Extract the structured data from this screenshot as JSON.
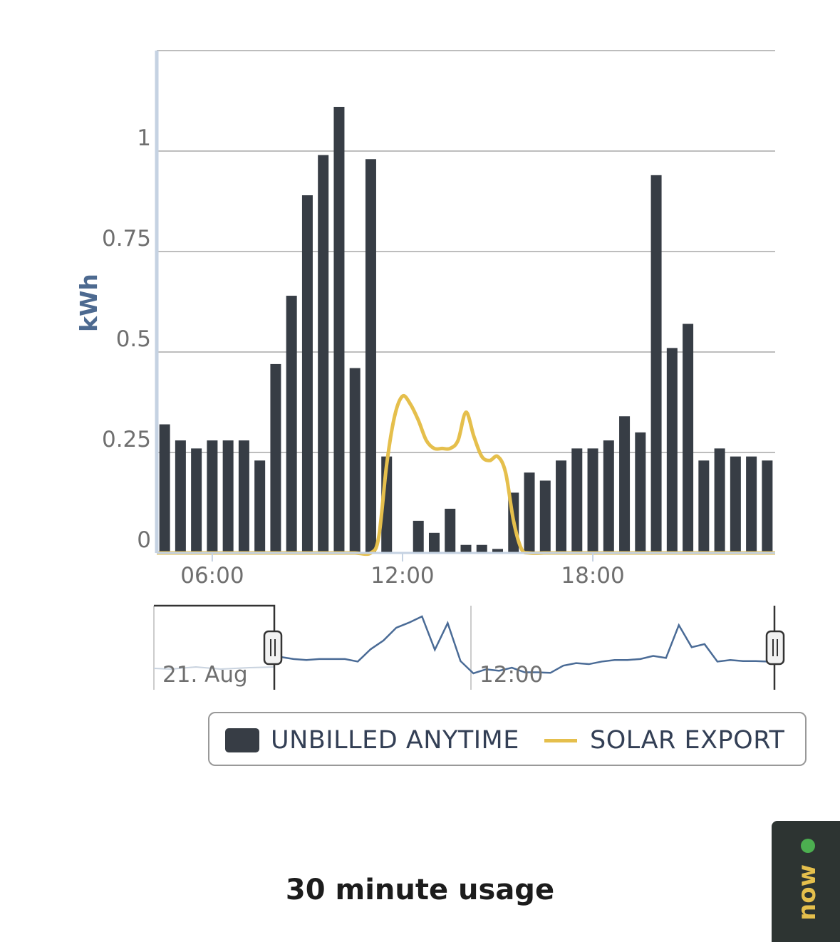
{
  "chart_data": {
    "type": "bar",
    "ylabel": "kWh",
    "ylim": [
      0,
      1.25
    ],
    "y_ticks": [
      "0",
      "0.25",
      "0.5",
      "0.75",
      "1"
    ],
    "y_tick_values": [
      0,
      0.25,
      0.5,
      0.75,
      1
    ],
    "x_ticks": [
      "06:00",
      "12:00",
      "18:00"
    ],
    "x_tick_values": [
      6,
      12,
      18
    ],
    "xlim": [
      4.25,
      23.75
    ],
    "grid": true,
    "legend_position": "bottom",
    "series": [
      {
        "name": "UNBILLED ANYTIME",
        "type": "bar",
        "color": "#373d45",
        "x": [
          4.5,
          5,
          5.5,
          6,
          6.5,
          7,
          7.5,
          8,
          8.5,
          9,
          9.5,
          10,
          10.5,
          11,
          11.5,
          12,
          12.5,
          13,
          13.5,
          14,
          14.5,
          15,
          15.5,
          16,
          16.5,
          17,
          17.5,
          18,
          18.5,
          19,
          19.5,
          20,
          20.5,
          21,
          21.5,
          22,
          22.5,
          23,
          23.5
        ],
        "values": [
          0.32,
          0.28,
          0.26,
          0.28,
          0.28,
          0.28,
          0.23,
          0.47,
          0.64,
          0.89,
          0.99,
          1.11,
          0.46,
          0.98,
          0.24,
          0,
          0.08,
          0.05,
          0.11,
          0.02,
          0.02,
          0.01,
          0.15,
          0.2,
          0.18,
          0.23,
          0.26,
          0.26,
          0.28,
          0.34,
          0.3,
          0.94,
          0.51,
          0.57,
          0.23,
          0.26,
          0.24,
          0.24,
          0.23
        ]
      },
      {
        "name": "SOLAR EXPORT",
        "type": "line",
        "color": "#e5bf4c",
        "x": [
          4.25,
          5,
          6,
          7,
          8,
          9,
          10,
          10.5,
          11,
          11.25,
          11.5,
          11.75,
          12,
          12.25,
          12.5,
          12.75,
          13,
          13.25,
          13.5,
          13.75,
          14,
          14.25,
          14.5,
          14.75,
          15,
          15.25,
          15.5,
          15.75,
          16,
          16.5,
          17,
          18,
          19,
          20,
          21,
          22,
          23,
          23.75
        ],
        "values": [
          0,
          0,
          0,
          0,
          0,
          0,
          0,
          0,
          0,
          0.04,
          0.22,
          0.34,
          0.39,
          0.37,
          0.33,
          0.28,
          0.26,
          0.26,
          0.26,
          0.28,
          0.35,
          0.29,
          0.24,
          0.23,
          0.24,
          0.2,
          0.08,
          0.01,
          0,
          0,
          0,
          0,
          0,
          0,
          0,
          0,
          0,
          0
        ]
      }
    ]
  },
  "navigator": {
    "labels": [
      "21. Aug",
      "12:00"
    ],
    "color": "#4a6b96"
  },
  "legend": {
    "items": [
      "UNBILLED ANYTIME",
      "SOLAR EXPORT"
    ]
  },
  "caption": "30 minute usage",
  "chat_tab": {
    "label": "now",
    "status_color": "#4caf50"
  }
}
